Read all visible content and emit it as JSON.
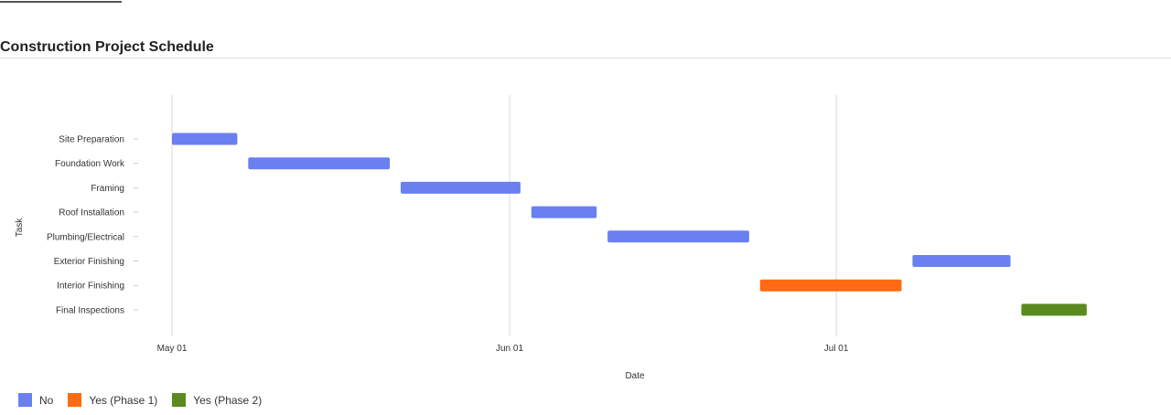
{
  "title": "Construction Project Schedule",
  "chart_data": {
    "type": "gantt",
    "xlabel": "Date",
    "ylabel": "Task",
    "x_ticks": [
      {
        "date": "2023-05-01",
        "label": "May 01"
      },
      {
        "date": "2023-06-01",
        "label": "Jun 01"
      },
      {
        "date": "2023-07-01",
        "label": "Jul 01"
      }
    ],
    "xlim": [
      "2023-04-24",
      "2023-08-23"
    ],
    "grid": "vertical",
    "legend_position": "bottom-left",
    "categories": [
      {
        "name": "No",
        "color": "#6a7ff0"
      },
      {
        "name": "Yes (Phase 1)",
        "color": "#ff6a13"
      },
      {
        "name": "Yes (Phase 2)",
        "color": "#5b8a1f"
      }
    ],
    "tasks": [
      {
        "task": "Site Preparation",
        "start": "2023-05-01",
        "end": "2023-05-07",
        "category": "No"
      },
      {
        "task": "Foundation Work",
        "start": "2023-05-08",
        "end": "2023-05-21",
        "category": "No"
      },
      {
        "task": "Framing",
        "start": "2023-05-22",
        "end": "2023-06-02",
        "category": "No"
      },
      {
        "task": "Roof Installation",
        "start": "2023-06-03",
        "end": "2023-06-09",
        "category": "No"
      },
      {
        "task": "Plumbing/Electrical",
        "start": "2023-06-10",
        "end": "2023-06-23",
        "category": "No"
      },
      {
        "task": "Exterior Finishing",
        "start": "2023-07-08",
        "end": "2023-07-17",
        "category": "No"
      },
      {
        "task": "Interior Finishing",
        "start": "2023-06-24",
        "end": "2023-07-07",
        "category": "Yes (Phase 1)"
      },
      {
        "task": "Final Inspections",
        "start": "2023-07-18",
        "end": "2023-07-24",
        "category": "Yes (Phase 2)"
      }
    ]
  }
}
